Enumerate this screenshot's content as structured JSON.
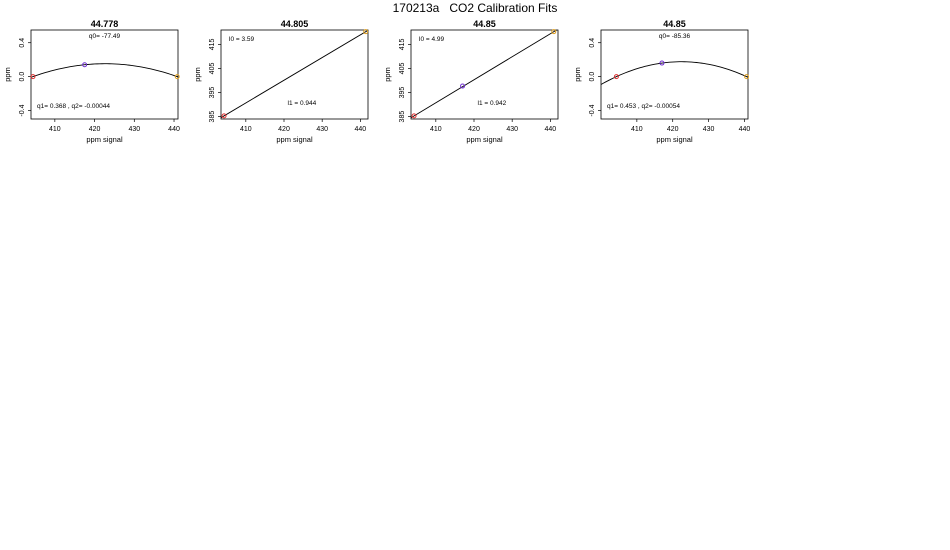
{
  "page_title": "170213a   CO2 Calibration Fits",
  "chart_data": [
    {
      "type": "scatter",
      "fit": "quadratic",
      "title": "44.778",
      "xlabel": "ppm signal",
      "ylabel": "ppm",
      "xlim": [
        404,
        441
      ],
      "ylim": [
        -0.5,
        0.55
      ],
      "xticks": [
        "410",
        "420",
        "430",
        "440"
      ],
      "yticks": [
        "-0.4",
        "0.0",
        "0.4"
      ],
      "points": [
        {
          "x": 404.5,
          "y": 0.0,
          "color": "#e03030"
        },
        {
          "x": 417.5,
          "y": 0.14,
          "color": "#7030d0"
        },
        {
          "x": 440.8,
          "y": 0.0,
          "color": "#e0a020"
        }
      ],
      "coef": {
        "q0": -77.49,
        "q1": 0.368,
        "q2": -0.00044
      },
      "annotation_top": "q0= -77.49",
      "annotation_bottom": "q1= 0.368 , q2= -0.00044"
    },
    {
      "type": "scatter",
      "fit": "linear",
      "title": "44.805",
      "xlabel": "ppm signal",
      "ylabel": "ppm",
      "xlim": [
        403.5,
        442
      ],
      "ylim": [
        384,
        421
      ],
      "xticks": [
        "410",
        "420",
        "430",
        "440"
      ],
      "yticks": [
        "385",
        "395",
        "405",
        "415"
      ],
      "points": [
        {
          "x": 404.3,
          "y": 385.3,
          "color": "#e03030"
        },
        {
          "x": 441.4,
          "y": 420.3,
          "color": "#e0a020"
        }
      ],
      "coef": {
        "l0": 3.59,
        "l1": 0.944
      },
      "annotation_top": "l0 =  3.59",
      "annotation_bottom": "l1 =  0.944"
    },
    {
      "type": "scatter",
      "fit": "linear",
      "title": "44.85",
      "xlabel": "ppm signal",
      "ylabel": "ppm",
      "xlim": [
        403.5,
        442
      ],
      "ylim": [
        384,
        421
      ],
      "xticks": [
        "410",
        "420",
        "430",
        "440"
      ],
      "yticks": [
        "385",
        "395",
        "405",
        "415"
      ],
      "points": [
        {
          "x": 404.3,
          "y": 385.3,
          "color": "#e03030"
        },
        {
          "x": 417.0,
          "y": 397.7,
          "color": "#7030d0"
        },
        {
          "x": 440.9,
          "y": 420.3,
          "color": "#e0a020"
        }
      ],
      "coef": {
        "l0": 4.99,
        "l1": 0.942
      },
      "annotation_top": "l0 =  4.99",
      "annotation_bottom": "l1 =  0.942"
    },
    {
      "type": "scatter",
      "fit": "quadratic",
      "title": "44.85",
      "xlabel": "ppm signal",
      "ylabel": "ppm",
      "xlim": [
        400,
        441
      ],
      "ylim": [
        -0.5,
        0.55
      ],
      "xticks": [
        "410",
        "420",
        "430",
        "440"
      ],
      "yticks": [
        "-0.4",
        "0.0",
        "0.4"
      ],
      "points": [
        {
          "x": 404.3,
          "y": 0.0,
          "color": "#e03030"
        },
        {
          "x": 417.0,
          "y": 0.16,
          "color": "#7030d0"
        },
        {
          "x": 440.6,
          "y": 0.0,
          "color": "#e0a020"
        }
      ],
      "coef": {
        "q0": -85.36,
        "q1": 0.453,
        "q2": -0.00054
      },
      "annotation_top": "q0= -85.36",
      "annotation_bottom": "q1= 0.453 , q2= -0.00054"
    }
  ]
}
